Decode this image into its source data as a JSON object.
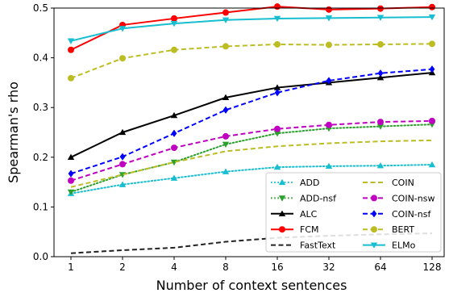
{
  "chart_data": {
    "type": "line",
    "xlabel": "Number of context sentences",
    "ylabel": "Spearman's rho",
    "categories": [
      "1",
      "2",
      "4",
      "8",
      "16",
      "32",
      "64",
      "128"
    ],
    "ylim": [
      0.0,
      0.5
    ],
    "yticks": [
      "0.0",
      "0.1",
      "0.2",
      "0.3",
      "0.4",
      "0.5"
    ],
    "legend_position": "bottom-right",
    "grid": false,
    "series": [
      {
        "name": "ADD",
        "color": "#17becf",
        "linestyle": "dotted",
        "marker": "triangle-up",
        "values": [
          0.127,
          0.145,
          0.158,
          0.171,
          0.18,
          0.182,
          0.183,
          0.185
        ]
      },
      {
        "name": "ADD-nsf",
        "color": "#2ca02c",
        "linestyle": "dotted",
        "marker": "triangle-down",
        "values": [
          0.13,
          0.165,
          0.19,
          0.226,
          0.248,
          0.258,
          0.262,
          0.266
        ]
      },
      {
        "name": "ALC",
        "color": "#000000",
        "linestyle": "solid",
        "marker": "triangle-up",
        "values": [
          0.2,
          0.25,
          0.284,
          0.32,
          0.34,
          0.35,
          0.36,
          0.37
        ]
      },
      {
        "name": "FCM",
        "color": "#ff0000",
        "linestyle": "solid",
        "marker": "circle",
        "values": [
          0.416,
          0.466,
          0.479,
          0.491,
          0.503,
          0.497,
          0.499,
          0.502
        ]
      },
      {
        "name": "FastText",
        "color": "#222222",
        "linestyle": "dashed",
        "marker": "none",
        "values": [
          0.007,
          0.013,
          0.018,
          0.03,
          0.038,
          0.042,
          0.045,
          0.047
        ]
      },
      {
        "name": "COIN",
        "color": "#bcbd22",
        "linestyle": "dashed",
        "marker": "none",
        "values": [
          0.14,
          0.165,
          0.19,
          0.212,
          0.222,
          0.228,
          0.232,
          0.234
        ]
      },
      {
        "name": "COIN-nsw",
        "color": "#c000c0",
        "linestyle": "dashed",
        "marker": "circle",
        "values": [
          0.153,
          0.186,
          0.219,
          0.242,
          0.257,
          0.265,
          0.271,
          0.273
        ]
      },
      {
        "name": "COIN-nsf",
        "color": "#0000ff",
        "linestyle": "dashed",
        "marker": "diamond",
        "values": [
          0.167,
          0.201,
          0.248,
          0.295,
          0.33,
          0.354,
          0.369,
          0.377
        ]
      },
      {
        "name": "BERT",
        "color": "#bcbd22",
        "linestyle": "dashed",
        "marker": "circle",
        "values": [
          0.359,
          0.399,
          0.416,
          0.423,
          0.427,
          0.426,
          0.427,
          0.428
        ]
      },
      {
        "name": "ELMo",
        "color": "#17becf",
        "linestyle": "solid",
        "marker": "triangle-down",
        "values": [
          0.434,
          0.459,
          0.469,
          0.476,
          0.479,
          0.48,
          0.481,
          0.482
        ]
      }
    ]
  }
}
